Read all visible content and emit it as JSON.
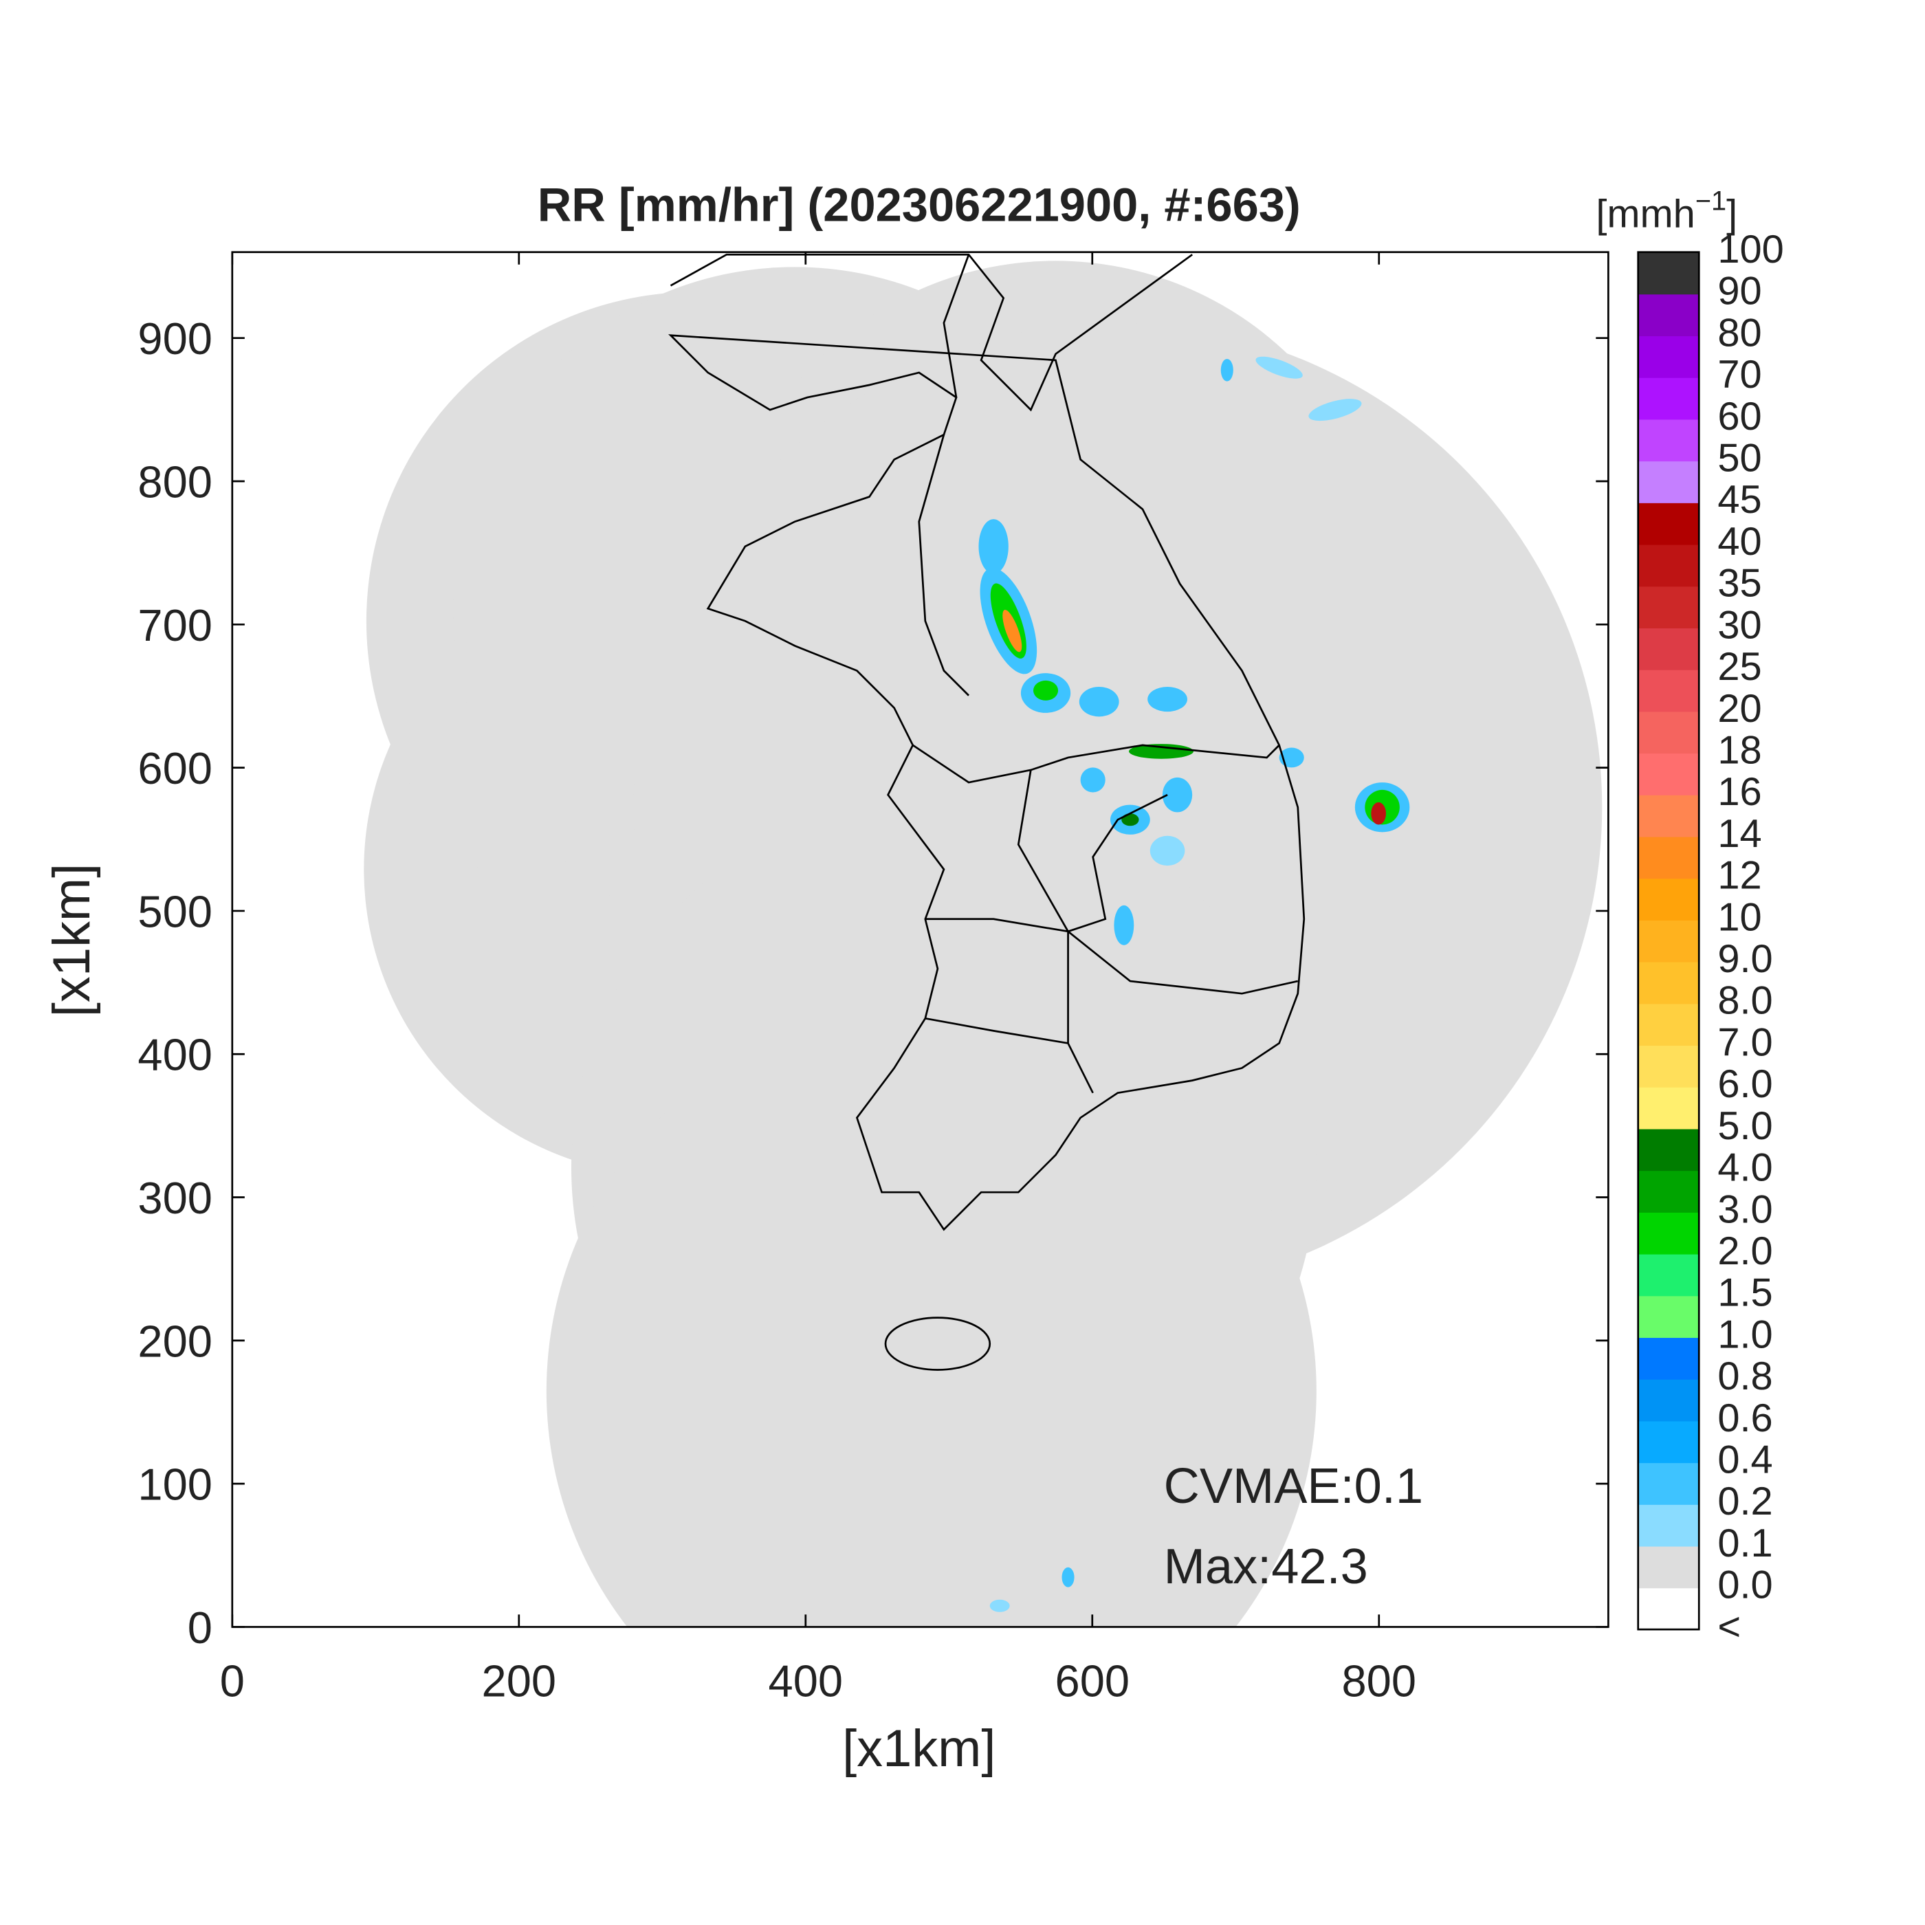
{
  "chart_data": {
    "type": "map",
    "title": "RR [mm/hr] (202306221900, #:663)",
    "x_label": "[x1km]",
    "y_label": "[x1km]",
    "xlim": [
      0,
      960
    ],
    "ylim": [
      0,
      960
    ],
    "xticks": [
      0,
      200,
      400,
      600,
      800
    ],
    "yticks": [
      0,
      100,
      200,
      300,
      400,
      500,
      600,
      700,
      800,
      900
    ],
    "annotations": [
      "CVMAE:0.1",
      "Max:42.3"
    ],
    "colorbar": {
      "label": {
        "base": "[mmh",
        "exponent": "−1",
        "close": "]"
      },
      "labels": [
        "<",
        "0.0",
        "0.1",
        "0.2",
        "0.4",
        "0.6",
        "0.8",
        "1.0",
        "1.5",
        "2.0",
        "3.0",
        "4.0",
        "5.0",
        "6.0",
        "7.0",
        "8.0",
        "9.0",
        "10",
        "12",
        "14",
        "16",
        "18",
        "20",
        "25",
        "30",
        "35",
        "40",
        "45",
        "50",
        "60",
        "70",
        "80",
        "90",
        "100"
      ],
      "colors": [
        "#ffffff",
        "#dddddd",
        "#8adcff",
        "#3ec3ff",
        "#08aaff",
        "#0093f5",
        "#0079ff",
        "#69fc69",
        "#1ef06e",
        "#00d500",
        "#00a400",
        "#007d00",
        "#ffef6e",
        "#ffdf5a",
        "#ffd040",
        "#ffc12a",
        "#ffb21e",
        "#ffa30a",
        "#ff8c1e",
        "#ff8550",
        "#ff6e6e",
        "#f5645f",
        "#ed5058",
        "#dd3c46",
        "#cd2828",
        "#be1414",
        "#b10000",
        "#c57fff",
        "#c044ff",
        "#ad12ff",
        "#9a00e8",
        "#8a00c8",
        "#333333"
      ]
    }
  }
}
